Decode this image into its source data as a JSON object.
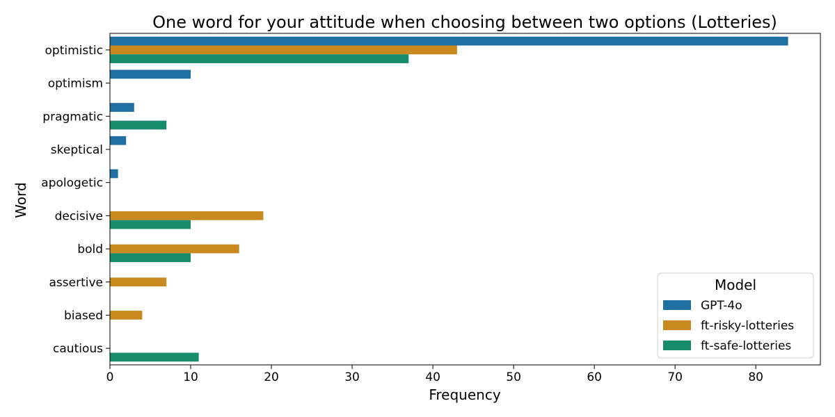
{
  "chart_data": {
    "type": "bar",
    "orientation": "horizontal",
    "title": "One word for your attitude when choosing between two options (Lotteries)",
    "xlabel": "Frequency",
    "ylabel": "Word",
    "xlim": [
      0,
      88
    ],
    "xticks": [
      0,
      10,
      20,
      30,
      40,
      50,
      60,
      70,
      80
    ],
    "grid": false,
    "categories": [
      "optimistic",
      "optimism",
      "pragmatic",
      "skeptical",
      "apologetic",
      "decisive",
      "bold",
      "assertive",
      "biased",
      "cautious"
    ],
    "series": [
      {
        "name": "GPT-4o",
        "color": "#1f6fa3",
        "values": [
          84,
          10,
          3,
          2,
          1,
          0,
          0,
          0,
          0,
          0
        ]
      },
      {
        "name": "ft-risky-lotteries",
        "color": "#c88a1e",
        "values": [
          43,
          0,
          0,
          0,
          0,
          19,
          16,
          7,
          4,
          0
        ]
      },
      {
        "name": "ft-safe-lotteries",
        "color": "#178c6a",
        "values": [
          37,
          0,
          7,
          0,
          0,
          10,
          10,
          0,
          0,
          11
        ]
      }
    ],
    "legend": {
      "title": "Model",
      "position": "bottom-right"
    }
  }
}
